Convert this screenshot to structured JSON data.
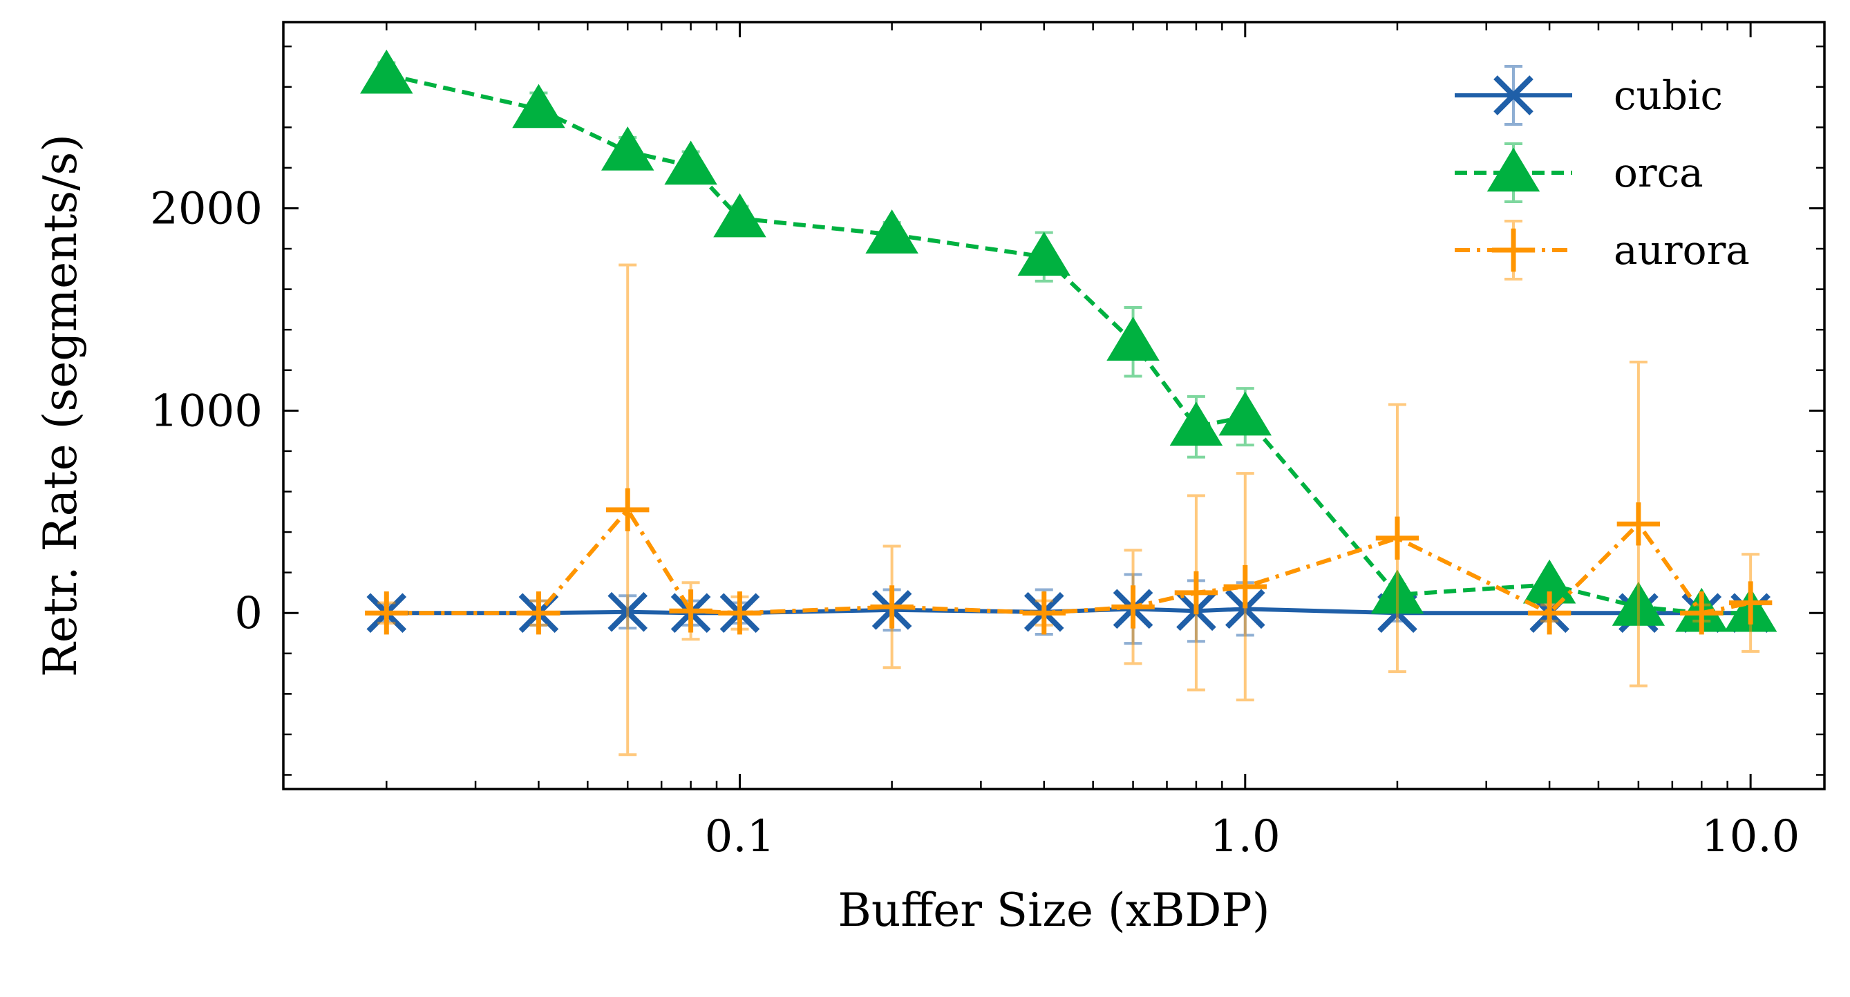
{
  "chart_data": {
    "type": "line",
    "xlabel": "Buffer Size (xBDP)",
    "ylabel": "Retr. Rate (segments/s)",
    "x_scale": "log",
    "xlim": [
      0.0125,
      14
    ],
    "ylim": [
      -870,
      2920
    ],
    "x_ticks": [
      0.1,
      1.0,
      10.0
    ],
    "x_tick_labels": [
      "0.1",
      "1.0",
      "10.0"
    ],
    "y_ticks": [
      0,
      1000,
      2000
    ],
    "y_tick_labels": [
      "0",
      "1000",
      "2000"
    ],
    "legend_position": "top-right",
    "series": [
      {
        "name": "cubic",
        "color": "#1f5fa8",
        "line_style": "solid",
        "marker": "x",
        "x": [
          0.02,
          0.04,
          0.06,
          0.08,
          0.1,
          0.2,
          0.4,
          0.6,
          0.8,
          1.0,
          2.0,
          4.0,
          6.0,
          8.0,
          10.0
        ],
        "y": [
          0,
          0,
          5,
          0,
          0,
          15,
          5,
          20,
          10,
          20,
          0,
          0,
          0,
          0,
          0
        ],
        "err": [
          40,
          60,
          80,
          60,
          50,
          100,
          110,
          170,
          150,
          130,
          40,
          40,
          30,
          30,
          40
        ]
      },
      {
        "name": "orca",
        "color": "#00b140",
        "line_style": "dashed",
        "marker": "triangle",
        "x": [
          0.02,
          0.04,
          0.06,
          0.08,
          0.1,
          0.2,
          0.4,
          0.6,
          0.8,
          1.0,
          2.0,
          4.0,
          6.0,
          8.0,
          10.0
        ],
        "y": [
          2660,
          2490,
          2280,
          2210,
          1950,
          1870,
          1760,
          1340,
          920,
          970,
          90,
          140,
          30,
          0,
          0
        ],
        "err": [
          60,
          80,
          70,
          70,
          60,
          60,
          120,
          170,
          150,
          140,
          50,
          40,
          40,
          20,
          20
        ]
      },
      {
        "name": "aurora",
        "color": "#ff9500",
        "line_style": "dashdot",
        "marker": "plus",
        "x": [
          0.02,
          0.04,
          0.06,
          0.08,
          0.1,
          0.2,
          0.4,
          0.6,
          0.8,
          1.0,
          2.0,
          4.0,
          6.0,
          8.0,
          10.0
        ],
        "y": [
          0,
          0,
          510,
          10,
          0,
          30,
          0,
          30,
          100,
          130,
          370,
          0,
          440,
          0,
          50
        ],
        "err": [
          50,
          60,
          1210,
          140,
          80,
          300,
          60,
          280,
          480,
          560,
          660,
          40,
          800,
          40,
          240
        ]
      }
    ]
  }
}
